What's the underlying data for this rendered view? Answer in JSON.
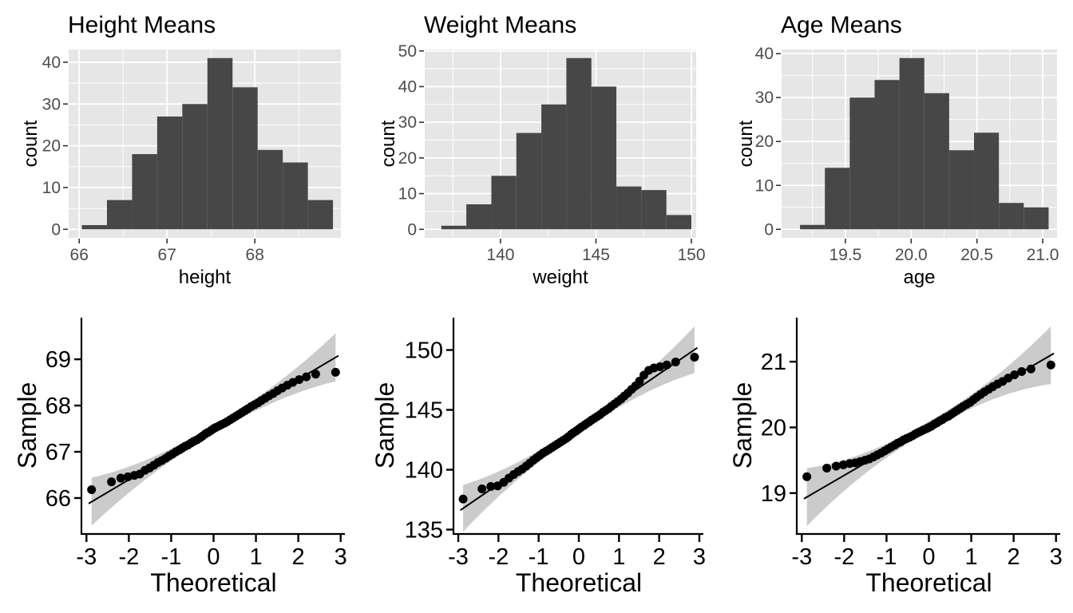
{
  "figure": {
    "background": "#FFFFFF",
    "rows": 2,
    "cols": 3
  },
  "style_colors": {
    "panel_bg": "#E6E6E6",
    "grid": "#FFFFFF",
    "bar_fill": "#474747",
    "hist_tick_text": "#4D4D4D",
    "tick_mark": "#333333",
    "black_text": "#000000",
    "qq_band": "#CBCBCB",
    "qq_line": "#000000",
    "qq_point": "#000000"
  },
  "chart_data": [
    {
      "type": "bar",
      "subtype": "histogram",
      "title": "Height Means",
      "xlabel": "height",
      "ylabel": "count",
      "bin_start": 66.03,
      "binwidth": 0.286,
      "counts": [
        1,
        7,
        18,
        27,
        30,
        41,
        34,
        19,
        16,
        7
      ],
      "x_tick_values": [
        66,
        67,
        68
      ],
      "x_tick_labels": [
        "66",
        "67",
        "68"
      ],
      "x_minor": [
        66.5,
        67.5,
        68.5
      ],
      "y_tick_values": [
        0,
        10,
        20,
        30,
        40
      ],
      "y_tick_labels": [
        "0",
        "10",
        "20",
        "30",
        "40"
      ],
      "y_minor": [
        5,
        15,
        25,
        35
      ],
      "xlim": [
        65.88,
        68.98
      ],
      "ylim": [
        -2.05,
        43.05
      ],
      "grid": true,
      "legend": false
    },
    {
      "type": "bar",
      "subtype": "histogram",
      "title": "Weight Means",
      "xlabel": "weight",
      "ylabel": "count",
      "bin_start": 136.9,
      "binwidth": 1.31,
      "counts": [
        1,
        7,
        15,
        27,
        35,
        48,
        40,
        12,
        11,
        4
      ],
      "x_tick_values": [
        140,
        145,
        150
      ],
      "x_tick_labels": [
        "140",
        "145",
        "150"
      ],
      "x_minor": [
        137.5,
        142.5,
        147.5
      ],
      "y_tick_values": [
        0,
        10,
        20,
        30,
        40,
        50
      ],
      "y_tick_labels": [
        "0",
        "10",
        "20",
        "30",
        "40",
        "50"
      ],
      "y_minor": [
        5,
        15,
        25,
        35,
        45
      ],
      "xlim": [
        136.03,
        150.25
      ],
      "ylim": [
        -2.4,
        50.4
      ],
      "grid": true,
      "legend": false
    },
    {
      "type": "bar",
      "subtype": "histogram",
      "title": "Age Means",
      "xlabel": "age",
      "ylabel": "count",
      "bin_start": 19.155,
      "binwidth": 0.189,
      "counts": [
        1,
        14,
        30,
        34,
        39,
        31,
        18,
        22,
        6,
        5
      ],
      "x_tick_values": [
        19.5,
        20.0,
        20.5,
        21.0
      ],
      "x_tick_labels": [
        "19.5",
        "20.0",
        "20.5",
        "21.0"
      ],
      "x_minor": [
        19.25,
        19.75,
        20.25,
        20.75
      ],
      "y_tick_values": [
        0,
        10,
        20,
        30,
        40
      ],
      "y_tick_labels": [
        "0",
        "10",
        "20",
        "30",
        "40"
      ],
      "y_minor": [
        5,
        15,
        25,
        35
      ],
      "xlim": [
        19.015,
        21.109
      ],
      "ylim": [
        -1.95,
        40.95
      ],
      "grid": true,
      "legend": false
    },
    {
      "type": "scatter",
      "subtype": "qq",
      "title": "",
      "xlabel": "Theoretical",
      "ylabel": "Sample",
      "x": [
        -2.88,
        -2.41,
        -2.19,
        -2.02,
        -1.87,
        -1.74,
        -1.62,
        -1.51,
        -1.41,
        -1.31,
        -1.22,
        -1.13,
        -1.05,
        -0.97,
        -0.89,
        -0.81,
        -0.74,
        -0.67,
        -0.6,
        -0.53,
        -0.46,
        -0.39,
        -0.32,
        -0.26,
        -0.19,
        -0.13,
        -0.06,
        0,
        0.06,
        0.13,
        0.19,
        0.26,
        0.32,
        0.39,
        0.46,
        0.53,
        0.6,
        0.67,
        0.74,
        0.81,
        0.89,
        0.97,
        1.05,
        1.13,
        1.22,
        1.31,
        1.41,
        1.51,
        1.62,
        1.74,
        1.87,
        2.02,
        2.19,
        2.41,
        2.88
      ],
      "y": [
        66.18,
        66.35,
        66.43,
        66.46,
        66.49,
        66.52,
        66.6,
        66.65,
        66.71,
        66.77,
        66.81,
        66.86,
        66.91,
        66.95,
        67.0,
        67.04,
        67.08,
        67.12,
        67.15,
        67.19,
        67.23,
        67.26,
        67.3,
        67.34,
        67.39,
        67.42,
        67.46,
        67.5,
        67.53,
        67.56,
        67.59,
        67.62,
        67.65,
        67.69,
        67.73,
        67.77,
        67.81,
        67.85,
        67.89,
        67.93,
        67.98,
        68.02,
        68.06,
        68.11,
        68.16,
        68.21,
        68.26,
        68.32,
        68.38,
        68.44,
        68.5,
        68.56,
        68.62,
        68.68,
        68.72
      ],
      "ref_line": {
        "slope": 0.542,
        "intercept": 67.48,
        "x_range": [
          -2.95,
          2.95
        ]
      },
      "band": {
        "x_range": [
          -2.88,
          2.88
        ],
        "halfwidth_center": 0.09,
        "halfwidth_edge": 0.52
      },
      "x_tick_values": [
        -3,
        -2,
        -1,
        0,
        1,
        2,
        3
      ],
      "x_tick_labels": [
        "-3",
        "-2",
        "-1",
        "0",
        "1",
        "2",
        "3"
      ],
      "y_tick_values": [
        66,
        67,
        68,
        69
      ],
      "y_tick_labels": [
        "66",
        "67",
        "68",
        "69"
      ],
      "xlim": [
        -3.1,
        3.1
      ],
      "ylim": [
        65.24,
        69.9
      ],
      "grid": false,
      "legend": false
    },
    {
      "type": "scatter",
      "subtype": "qq",
      "title": "",
      "xlabel": "Theoretical",
      "ylabel": "Sample",
      "x": [
        -2.88,
        -2.41,
        -2.19,
        -2.02,
        -1.87,
        -1.74,
        -1.62,
        -1.51,
        -1.41,
        -1.31,
        -1.22,
        -1.13,
        -1.05,
        -0.97,
        -0.89,
        -0.81,
        -0.74,
        -0.67,
        -0.6,
        -0.53,
        -0.46,
        -0.39,
        -0.32,
        -0.26,
        -0.19,
        -0.13,
        -0.06,
        0,
        0.06,
        0.13,
        0.19,
        0.26,
        0.32,
        0.39,
        0.46,
        0.53,
        0.6,
        0.67,
        0.74,
        0.81,
        0.89,
        0.97,
        1.05,
        1.13,
        1.22,
        1.31,
        1.41,
        1.51,
        1.62,
        1.74,
        1.87,
        2.02,
        2.19,
        2.41,
        2.88
      ],
      "y": [
        137.55,
        138.4,
        138.6,
        138.65,
        138.95,
        139.3,
        139.6,
        139.85,
        140.05,
        140.3,
        140.55,
        140.8,
        141.0,
        141.2,
        141.4,
        141.55,
        141.7,
        141.85,
        142.0,
        142.15,
        142.3,
        142.45,
        142.6,
        142.75,
        142.95,
        143.1,
        143.25,
        143.4,
        143.55,
        143.7,
        143.85,
        144.0,
        144.15,
        144.3,
        144.45,
        144.6,
        144.8,
        144.95,
        145.1,
        145.3,
        145.5,
        145.7,
        145.9,
        146.15,
        146.4,
        146.7,
        147.0,
        147.4,
        147.9,
        148.3,
        148.5,
        148.6,
        148.75,
        149.0,
        149.4
      ],
      "ref_line": {
        "slope": 2.3,
        "intercept": 143.4,
        "x_range": [
          -2.95,
          2.95
        ]
      },
      "band": {
        "x_range": [
          -2.88,
          2.88
        ],
        "halfwidth_center": 0.32,
        "halfwidth_edge": 1.95
      },
      "x_tick_values": [
        -3,
        -2,
        -1,
        0,
        1,
        2,
        3
      ],
      "x_tick_labels": [
        "-3",
        "-2",
        "-1",
        "0",
        "1",
        "2",
        "3"
      ],
      "y_tick_values": [
        135,
        140,
        145,
        150
      ],
      "y_tick_labels": [
        "135",
        "140",
        "145",
        "150"
      ],
      "xlim": [
        -3.1,
        3.1
      ],
      "ylim": [
        134.7,
        152.7
      ],
      "grid": false,
      "legend": false
    },
    {
      "type": "scatter",
      "subtype": "qq",
      "title": "",
      "xlabel": "Theoretical",
      "ylabel": "Sample",
      "x": [
        -2.88,
        -2.41,
        -2.19,
        -2.02,
        -1.87,
        -1.74,
        -1.62,
        -1.51,
        -1.41,
        -1.31,
        -1.22,
        -1.13,
        -1.05,
        -0.97,
        -0.89,
        -0.81,
        -0.74,
        -0.67,
        -0.6,
        -0.53,
        -0.46,
        -0.39,
        -0.32,
        -0.26,
        -0.19,
        -0.13,
        -0.06,
        0,
        0.06,
        0.13,
        0.19,
        0.26,
        0.32,
        0.39,
        0.46,
        0.53,
        0.6,
        0.67,
        0.74,
        0.81,
        0.89,
        0.97,
        1.05,
        1.13,
        1.22,
        1.31,
        1.41,
        1.51,
        1.62,
        1.74,
        1.87,
        2.02,
        2.19,
        2.41,
        2.88
      ],
      "y": [
        19.25,
        19.38,
        19.41,
        19.43,
        19.45,
        19.46,
        19.48,
        19.5,
        19.52,
        19.55,
        19.58,
        19.61,
        19.64,
        19.67,
        19.7,
        19.73,
        19.76,
        19.78,
        19.81,
        19.83,
        19.85,
        19.87,
        19.9,
        19.92,
        19.94,
        19.96,
        19.98,
        20.0,
        20.02,
        20.05,
        20.07,
        20.1,
        20.12,
        20.15,
        20.17,
        20.2,
        20.23,
        20.26,
        20.29,
        20.32,
        20.35,
        20.38,
        20.42,
        20.46,
        20.5,
        20.54,
        20.58,
        20.62,
        20.66,
        20.7,
        20.75,
        20.8,
        20.85,
        20.89,
        20.95
      ],
      "ref_line": {
        "slope": 0.375,
        "intercept": 20.02,
        "x_range": [
          -2.95,
          2.95
        ]
      },
      "band": {
        "x_range": [
          -2.88,
          2.88
        ],
        "halfwidth_center": 0.07,
        "halfwidth_edge": 0.44
      },
      "x_tick_values": [
        -3,
        -2,
        -1,
        0,
        1,
        2,
        3
      ],
      "x_tick_labels": [
        "-3",
        "-2",
        "-1",
        "0",
        "1",
        "2",
        "3"
      ],
      "y_tick_values": [
        19,
        20,
        21
      ],
      "y_tick_labels": [
        "19",
        "20",
        "21"
      ],
      "xlim": [
        -3.1,
        3.1
      ],
      "ylim": [
        18.39,
        21.67
      ],
      "grid": false,
      "legend": false
    }
  ]
}
